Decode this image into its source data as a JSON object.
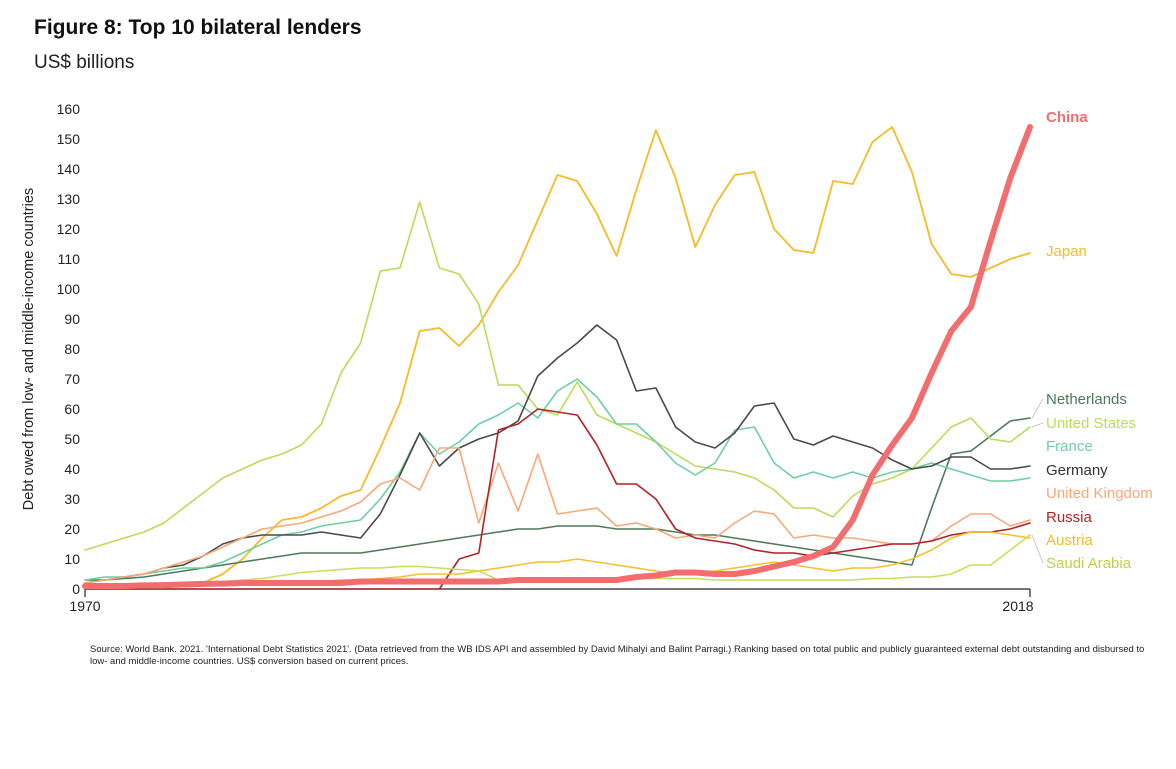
{
  "chart_data": {
    "type": "line",
    "title": "Figure 8: Top 10 bilateral lenders",
    "subtitle": "US$ billions",
    "ylabel": "Debt owed from low- and middle-income countries",
    "xlabel": "",
    "x_tick_labels": [
      "1970",
      "2018"
    ],
    "y_ticks": [
      0,
      10,
      20,
      30,
      40,
      50,
      60,
      70,
      80,
      90,
      100,
      110,
      120,
      130,
      140,
      150,
      160
    ],
    "xlim": [
      1970,
      2018
    ],
    "ylim": [
      0,
      160
    ],
    "grid": false,
    "legend": "direct labels at right end of lines",
    "x": [
      1970,
      1971,
      1972,
      1973,
      1974,
      1975,
      1976,
      1977,
      1978,
      1979,
      1980,
      1981,
      1982,
      1983,
      1984,
      1985,
      1986,
      1987,
      1988,
      1989,
      1990,
      1991,
      1992,
      1993,
      1994,
      1995,
      1996,
      1997,
      1998,
      1999,
      2000,
      2001,
      2002,
      2003,
      2004,
      2005,
      2006,
      2007,
      2008,
      2009,
      2010,
      2011,
      2012,
      2013,
      2014,
      2015,
      2016,
      2017,
      2018
    ],
    "series": [
      {
        "name": "China",
        "color": "#f26d6d",
        "width": 6,
        "values": [
          1,
          1,
          1,
          1.2,
          1.3,
          1.5,
          1.7,
          1.8,
          2,
          2,
          2,
          2,
          2,
          2,
          2.5,
          2.5,
          2.5,
          2.5,
          2.5,
          2.5,
          2.5,
          2.5,
          3,
          3,
          3,
          3,
          3,
          3,
          4,
          4.5,
          5.5,
          5.5,
          5,
          5,
          6,
          7.5,
          9,
          11,
          14,
          23,
          38,
          48,
          57,
          72,
          86,
          94,
          116,
          137,
          154
        ]
      },
      {
        "name": "Japan",
        "color": "#f5bb2a",
        "width": 1.8,
        "values": [
          0.5,
          0.5,
          0.5,
          0.5,
          0.5,
          1,
          2,
          5,
          10,
          17,
          23,
          24,
          27,
          31,
          33,
          47,
          62,
          86,
          87,
          81,
          88,
          99,
          108,
          123,
          138,
          136,
          125,
          111,
          133,
          153,
          137,
          114,
          128,
          138,
          139,
          120,
          113,
          112,
          136,
          135,
          149,
          154,
          139,
          115,
          105,
          104,
          107,
          110,
          112
        ]
      },
      {
        "name": "Netherlands",
        "color": "#4e7a5a",
        "width": 1.6,
        "values": [
          3,
          3,
          3.5,
          4,
          5,
          6,
          7,
          8,
          9,
          10,
          11,
          12,
          12,
          12,
          12,
          13,
          14,
          15,
          16,
          17,
          18,
          19,
          20,
          20,
          21,
          21,
          21,
          20,
          20,
          20,
          19,
          18,
          18,
          17,
          16,
          15,
          14,
          13,
          12,
          11,
          10,
          9,
          8,
          27,
          45,
          46,
          51,
          56,
          57
        ]
      },
      {
        "name": "United States",
        "color": "#b9dc5a",
        "width": 1.6,
        "values": [
          13,
          15,
          17,
          19,
          22,
          27,
          32,
          37,
          40,
          43,
          45,
          48,
          55,
          72,
          82,
          106,
          107,
          129,
          107,
          105,
          95,
          68,
          68,
          60,
          58,
          69,
          58,
          55,
          52,
          49,
          45,
          41,
          40,
          39,
          37,
          33,
          27,
          27,
          24,
          31,
          35,
          37,
          40,
          47,
          54,
          57,
          50,
          49,
          54
        ]
      },
      {
        "name": "France",
        "color": "#6fcfa0",
        "width": 1.6,
        "values": [
          3,
          4,
          4,
          5,
          6,
          7,
          7,
          9,
          12,
          15,
          18,
          19,
          21,
          22,
          23,
          30,
          39,
          52,
          45,
          49,
          55,
          58,
          62,
          57,
          66,
          70,
          64,
          55,
          55,
          49,
          42,
          38,
          42,
          53,
          54,
          42,
          37,
          39,
          37,
          39,
          37,
          39,
          40,
          42,
          40,
          38,
          36,
          36,
          37
        ]
      },
      {
        "name": "Germany",
        "color": "#4a4a4a",
        "width": 1.6,
        "values": [
          2,
          3,
          4,
          5,
          7,
          8,
          11,
          15,
          17,
          18,
          18,
          18,
          19,
          18,
          17,
          25,
          38,
          52,
          41,
          47,
          50,
          52,
          56,
          71,
          77,
          82,
          88,
          83,
          66,
          67,
          54,
          49,
          47,
          52,
          61,
          62,
          50,
          48,
          51,
          49,
          47,
          43,
          40,
          41,
          44,
          44,
          40,
          40,
          41
        ]
      },
      {
        "name": "United Kingdom",
        "color": "#f9a878",
        "width": 1.6,
        "values": [
          2,
          3,
          4,
          5,
          7,
          9,
          11,
          14,
          17,
          20,
          21,
          22,
          24,
          26,
          29,
          35,
          37,
          33,
          47,
          47,
          22,
          42,
          26,
          45,
          25,
          26,
          27,
          21,
          22,
          20,
          17,
          18,
          17,
          22,
          26,
          25,
          17,
          18,
          17,
          17,
          16,
          15,
          15,
          16,
          21,
          25,
          25,
          21,
          23
        ]
      },
      {
        "name": "Russia",
        "color": "#b32226",
        "width": 1.6,
        "values": [
          0,
          0,
          0,
          0,
          0,
          0,
          0,
          0,
          0,
          0,
          0,
          0,
          0,
          0,
          0,
          0,
          0,
          0,
          0,
          10,
          12,
          53,
          55,
          60,
          59,
          58,
          48,
          35,
          35,
          30,
          20,
          17,
          16,
          15,
          13,
          12,
          12,
          11,
          12,
          13,
          14,
          15,
          15,
          16,
          18,
          19,
          19,
          20,
          22
        ]
      },
      {
        "name": "Austria",
        "color": "#f5c02a",
        "width": 1.6,
        "values": [
          0.5,
          0.5,
          0.5,
          0.5,
          0.5,
          1,
          1,
          1.5,
          1.5,
          2,
          2,
          2,
          2.5,
          3,
          3,
          3.5,
          4,
          5,
          5,
          5,
          6,
          7,
          8,
          9,
          9,
          10,
          9,
          8,
          7,
          6,
          5,
          5,
          6,
          7,
          8,
          9,
          8,
          7,
          6,
          7,
          7,
          8,
          10,
          13,
          17,
          19,
          19,
          18,
          17
        ]
      },
      {
        "name": "Saudi Arabia",
        "color": "#c9de5a",
        "width": 1.6,
        "values": [
          0.5,
          0.5,
          0.5,
          0.5,
          1,
          1.5,
          2,
          2.5,
          3,
          3.5,
          4.5,
          5.5,
          6,
          6.5,
          7,
          7,
          7.5,
          7.5,
          7,
          6.5,
          6,
          3,
          3,
          3,
          3.5,
          3.5,
          3.5,
          3.5,
          3.5,
          3.5,
          3.5,
          3.5,
          3,
          3,
          3,
          3,
          3,
          3,
          3,
          3,
          3.5,
          3.5,
          4,
          4,
          5,
          8,
          8,
          13,
          18
        ]
      }
    ],
    "label_positions": [
      "top-right"
    ]
  },
  "source": "Source: World Bank. 2021. 'International Debt Statistics 2021'. (Data retrieved from the WB IDS API and assembled by David Mihalyi and Balint Parragi.) Ranking based on total public and publicly guaranteed external debt outstanding and disbursed to low- and middle-income countries. US$ conversion based on current prices."
}
